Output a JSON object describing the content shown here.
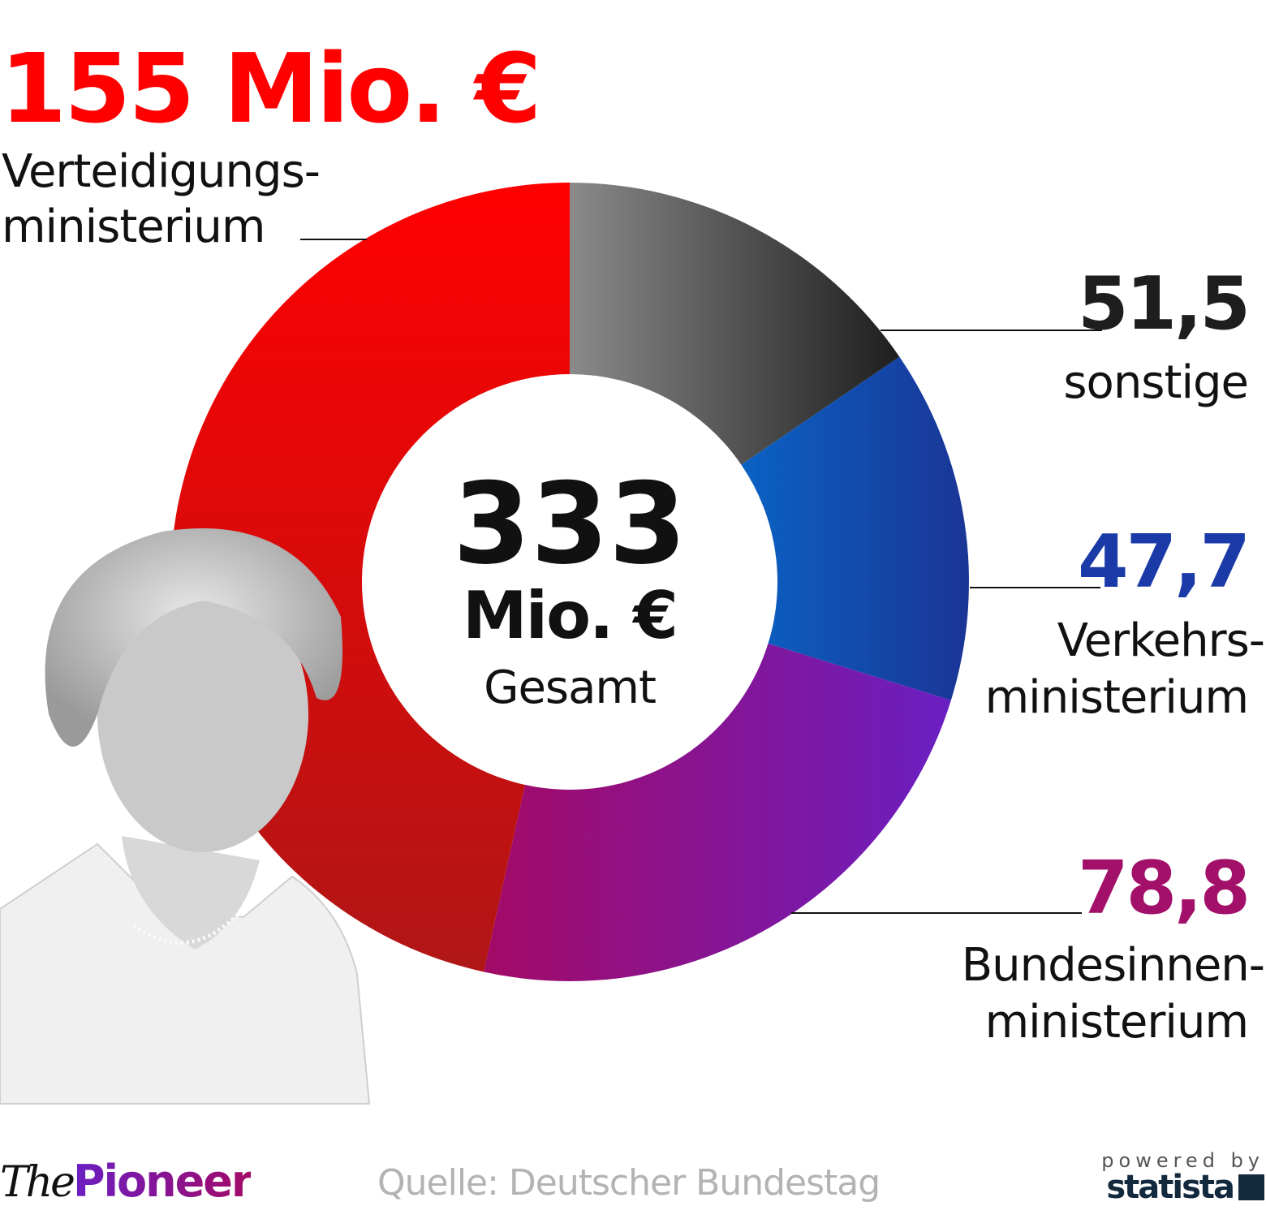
{
  "chart_data": {
    "type": "pie",
    "variant": "donut",
    "unit": "Mio. €",
    "start": "top, clockwise",
    "categories": [
      "sonstige",
      "Verkehrsministerium",
      "Bundesinnenministerium",
      "Verteidigungsministerium"
    ],
    "values": [
      51.5,
      47.7,
      78.8,
      155
    ],
    "colors": [
      [
        "#8a8a8a",
        "#1e1e1e"
      ],
      [
        "#0a62c4",
        "#1a3596"
      ],
      [
        "#a30a66",
        "#6a1fc2"
      ],
      [
        "#ff0000",
        "#b01616"
      ]
    ],
    "center": {
      "value": "333",
      "unit": "Mio. €",
      "caption": "Gesamt"
    }
  },
  "labels": {
    "defense": {
      "value": "155 Mio. €",
      "line1": "Verteidigungs-",
      "line2": "ministerium",
      "color": "#ff0000"
    },
    "other": {
      "value": "51,5",
      "line1": "sonstige",
      "color": "#1e1e1e"
    },
    "transport": {
      "value": "47,7",
      "line1": "Verkehrs-",
      "line2": "ministerium",
      "color": "#1a3aa8"
    },
    "interior": {
      "value": "78,8",
      "line1": "Bundesinnen-",
      "line2": "ministerium",
      "color": "#a3106a"
    }
  },
  "footer": {
    "brand_the": "The",
    "brand_pioneer": "Pioneer",
    "source": "Quelle: Deutscher Bundestag",
    "powered_by": "powered by",
    "statista": "statista"
  }
}
